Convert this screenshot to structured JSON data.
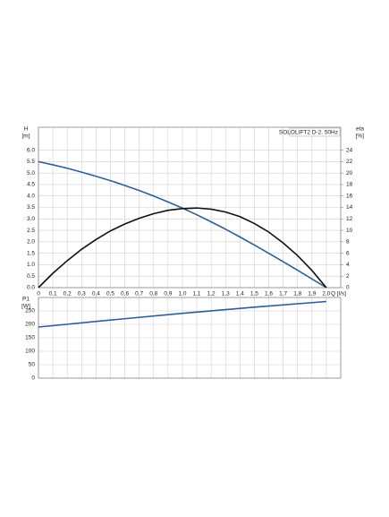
{
  "chart_data": [
    {
      "type": "line",
      "title": "SOLOLIFT2 D-2. 50Hz",
      "x_label": "Q [l/s]",
      "y_label": "H",
      "y_unit": "[m]",
      "y2_label": "eta",
      "y2_unit": "[%]",
      "x": [
        0,
        0.1,
        0.2,
        0.3,
        0.4,
        0.5,
        0.6,
        0.7,
        0.8,
        0.9,
        1.0,
        1.1,
        1.2,
        1.3,
        1.4,
        1.5,
        1.6,
        1.7,
        1.8,
        1.9,
        2.0
      ],
      "series": [
        {
          "color": "#2d5f96",
          "values": [
            5.5,
            5.36,
            5.21,
            5.04,
            4.86,
            4.67,
            4.46,
            4.24,
            4.0,
            3.74,
            3.47,
            3.18,
            2.87,
            2.55,
            2.21,
            1.86,
            1.5,
            1.13,
            0.76,
            0.38,
            0.0
          ]
        },
        {
          "color": "#111111",
          "axis": "y2",
          "values": [
            0,
            2.5,
            4.7,
            6.7,
            8.4,
            9.9,
            11.1,
            12.1,
            12.9,
            13.5,
            13.8,
            13.9,
            13.7,
            13.2,
            12.4,
            11.2,
            9.7,
            7.8,
            5.6,
            3.0,
            0
          ]
        }
      ],
      "xlim": [
        0,
        2.1
      ],
      "xticks": [
        0,
        {
          "value": 0.1,
          "label": "0,1"
        },
        {
          "value": 0.2,
          "label": "0,2"
        },
        {
          "value": 0.3,
          "label": "0,3"
        },
        {
          "value": 0.4,
          "label": "0,4"
        },
        {
          "value": 0.5,
          "label": "0,5"
        },
        {
          "value": 0.6,
          "label": "0,6"
        },
        {
          "value": 0.7,
          "label": "0,7"
        },
        {
          "value": 0.8,
          "label": "0,8"
        },
        {
          "value": 0.9,
          "label": "0,9"
        },
        {
          "value": 1.0,
          "label": "1,0"
        },
        {
          "value": 1.1,
          "label": "1,1"
        },
        {
          "value": 1.2,
          "label": "1,2"
        },
        {
          "value": 1.3,
          "label": "1,3"
        },
        {
          "value": 1.4,
          "label": "1,4"
        },
        {
          "value": 1.5,
          "label": "1,5"
        },
        {
          "value": 1.6,
          "label": "1,6"
        },
        {
          "value": 1.7,
          "label": "1,7"
        },
        {
          "value": 1.8,
          "label": "1,8"
        },
        {
          "value": 1.9,
          "label": "1,9"
        },
        {
          "value": 2.0,
          "label": "2,0"
        }
      ],
      "ylim": [
        0,
        7
      ],
      "yticks": [
        {
          "value": 0,
          "label": "0.0"
        },
        {
          "value": 0.5,
          "label": "0.5"
        },
        {
          "value": 1,
          "label": "1.0"
        },
        {
          "value": 1.5,
          "label": "1.5"
        },
        {
          "value": 2,
          "label": "2.0"
        },
        {
          "value": 2.5,
          "label": "2.5"
        },
        {
          "value": 3,
          "label": "3.0"
        },
        {
          "value": 3.5,
          "label": "3.5"
        },
        {
          "value": 4,
          "label": "4.0"
        },
        {
          "value": 4.5,
          "label": "4.5"
        },
        {
          "value": 5,
          "label": "5.0"
        },
        {
          "value": 5.5,
          "label": "5.5"
        },
        {
          "value": 6,
          "label": "6.0"
        }
      ],
      "y2lim": [
        0,
        28
      ],
      "y2ticks": [
        0,
        2,
        4,
        6,
        8,
        10,
        12,
        14,
        16,
        18,
        20,
        22,
        24
      ],
      "grid": true
    },
    {
      "type": "line",
      "y_label": "P1",
      "y_unit": "[W]",
      "x": [
        0,
        0.5,
        1.0,
        1.5,
        2.0
      ],
      "series": [
        {
          "color": "#2d5f96",
          "values": [
            190,
            216,
            241,
            264,
            285
          ]
        }
      ],
      "xlim": [
        0,
        2.1
      ],
      "xticks": [
        0,
        0.1,
        0.2,
        0.3,
        0.4,
        0.5,
        0.6,
        0.7,
        0.8,
        0.9,
        1.0,
        1.1,
        1.2,
        1.3,
        1.4,
        1.5,
        1.6,
        1.7,
        1.8,
        1.9,
        2.0
      ],
      "ylim": [
        0,
        300
      ],
      "yticks": [
        0,
        50,
        100,
        150,
        200,
        250
      ],
      "grid": true
    }
  ]
}
